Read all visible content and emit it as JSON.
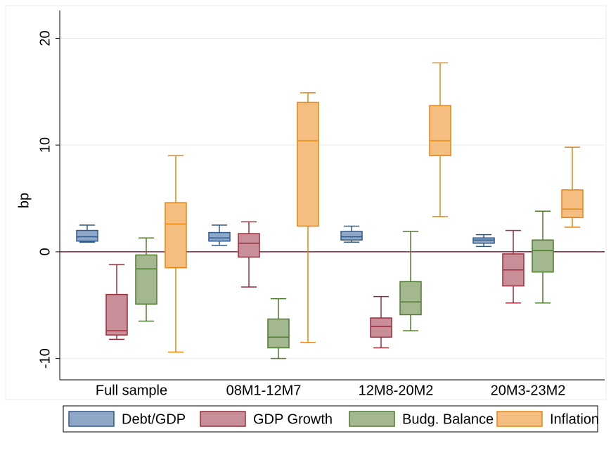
{
  "chart_data": {
    "type": "box",
    "ylabel": "bp",
    "categories": [
      "Full sample",
      "08M1-12M7",
      "12M8-20M2",
      "20M3-23M2"
    ],
    "ylim": [
      -12,
      22.6
    ],
    "yticks": [
      -10,
      0,
      10,
      20
    ],
    "grid": true,
    "hline": 0,
    "hline_color": "#8b1a3a",
    "legend_position": "bottom",
    "series": [
      {
        "name": "Debt/GDP",
        "color": "#8fa8c8",
        "stroke": "#2f5a8a",
        "max": [
          2.5,
          2.5,
          2.4,
          1.6
        ],
        "q3": [
          2.0,
          1.8,
          1.9,
          1.3
        ],
        "median": [
          1.4,
          1.3,
          1.4,
          1.1
        ],
        "q1": [
          1.0,
          1.0,
          1.1,
          0.8
        ],
        "min": [
          0.9,
          0.6,
          0.9,
          0.5
        ]
      },
      {
        "name": "GDP Growth",
        "color": "#c98f98",
        "stroke": "#9b2c3c",
        "max": [
          -1.2,
          2.8,
          -4.2,
          2.0
        ],
        "q3": [
          -4.0,
          1.7,
          -6.2,
          -0.2
        ],
        "median": [
          -7.4,
          0.8,
          -7.0,
          -1.7
        ],
        "q1": [
          -7.8,
          -0.5,
          -8.0,
          -3.2
        ],
        "min": [
          -8.2,
          -3.3,
          -9.0,
          -4.8
        ]
      },
      {
        "name": "Budg. Balance",
        "color": "#a4b890",
        "stroke": "#4e7a2e",
        "max": [
          1.3,
          -4.4,
          1.9,
          3.8
        ],
        "q3": [
          -0.3,
          -6.3,
          -2.8,
          1.1
        ],
        "median": [
          -1.6,
          -8.0,
          -4.7,
          0.1
        ],
        "q1": [
          -4.9,
          -9.0,
          -5.9,
          -1.9
        ],
        "min": [
          -6.5,
          -10.0,
          -7.4,
          -4.8
        ]
      },
      {
        "name": "Inflation",
        "color": "#f4be80",
        "stroke": "#e8860e",
        "max": [
          9.0,
          14.9,
          17.7,
          9.8
        ],
        "q3": [
          4.6,
          14.0,
          13.7,
          5.8
        ],
        "median": [
          2.6,
          10.4,
          10.4,
          4.0
        ],
        "q1": [
          -1.5,
          2.4,
          9.0,
          3.2
        ],
        "min": [
          -9.4,
          -8.5,
          3.3,
          2.3
        ]
      }
    ]
  }
}
